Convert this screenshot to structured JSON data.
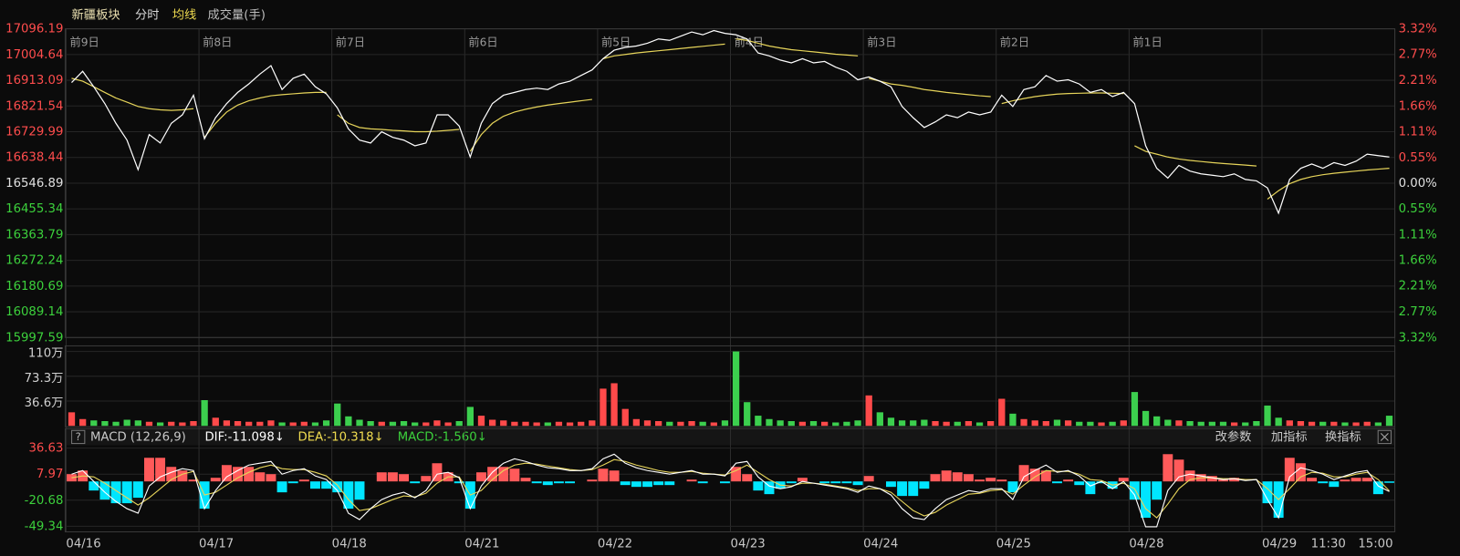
{
  "header": {
    "name": "新疆板块",
    "tabs": [
      "分时",
      "均线",
      "成交量(手)"
    ]
  },
  "chart_data": [
    {
      "type": "line",
      "ylim": [
        15997.59,
        17096.19
      ],
      "yticks": [
        17096.19,
        17004.64,
        16913.09,
        16821.54,
        16729.99,
        16638.44,
        16546.89,
        16455.34,
        16363.79,
        16272.24,
        16180.69,
        16089.14,
        15997.59
      ],
      "y2lim": [
        -3.32,
        3.32
      ],
      "y2ticks": [
        {
          "value": 3.32,
          "label": "3.32%"
        },
        {
          "value": 2.77,
          "label": "2.77%"
        },
        {
          "value": 2.21,
          "label": "2.21%"
        },
        {
          "value": 1.66,
          "label": "1.66%"
        },
        {
          "value": 1.11,
          "label": "1.11%"
        },
        {
          "value": 0.55,
          "label": "0.55%"
        },
        {
          "value": 0,
          "label": "0.00%"
        },
        {
          "value": -0.55,
          "label": "0.55%"
        },
        {
          "value": -1.11,
          "label": "1.11%"
        },
        {
          "value": -1.66,
          "label": "1.66%"
        },
        {
          "value": -2.21,
          "label": "2.21%"
        },
        {
          "value": -2.77,
          "label": "2.77%"
        },
        {
          "value": -3.32,
          "label": "3.32%"
        }
      ],
      "day_labels": [
        "前9日",
        "前8日",
        "前7日",
        "前6日",
        "前5日",
        "前4日",
        "前3日",
        "前2日",
        "前1日"
      ],
      "grid": true,
      "series": [
        {
          "color": "#ffffff",
          "values": [
            16905,
            16945,
            16890,
            16830,
            16760,
            16700,
            16595,
            16720,
            16690,
            16760,
            16790,
            16860,
            16705,
            16780,
            16830,
            16870,
            16900,
            16935,
            16965,
            16880,
            16920,
            16935,
            16890,
            16865,
            16815,
            16740,
            16700,
            16690,
            16730,
            16710,
            16700,
            16680,
            16690,
            16790,
            16790,
            16750,
            16640,
            16760,
            16830,
            16860,
            16870,
            16880,
            16885,
            16880,
            16900,
            16910,
            16930,
            16950,
            16990,
            17020,
            17030,
            17035,
            17045,
            17060,
            17055,
            17070,
            17085,
            17075,
            17090,
            17080,
            17075,
            17060,
            17010,
            17000,
            16985,
            16975,
            16990,
            16975,
            16980,
            16960,
            16945,
            16915,
            16925,
            16910,
            16890,
            16820,
            16780,
            16745,
            16765,
            16790,
            16780,
            16800,
            16790,
            16800,
            16860,
            16820,
            16880,
            16890,
            16930,
            16910,
            16915,
            16900,
            16870,
            16880,
            16855,
            16870,
            16830,
            16680,
            16600,
            16565,
            16610,
            16590,
            16580,
            16575,
            16570,
            16580,
            16560,
            16555,
            16530,
            16440,
            16560,
            16600,
            16615,
            16600,
            16620,
            16610,
            16625,
            16650,
            16645,
            16640
          ]
        },
        {
          "color": "#e6d45a",
          "values": [
            16920,
            16910,
            16890,
            16870,
            16850,
            16835,
            16820,
            16812,
            16808,
            16806,
            16808,
            16812,
            16710,
            16760,
            16800,
            16825,
            16840,
            16850,
            16858,
            16862,
            16865,
            16868,
            16870,
            16870,
            16790,
            16760,
            16745,
            16740,
            16738,
            16735,
            16733,
            16730,
            16730,
            16732,
            16735,
            16738,
            16660,
            16720,
            16760,
            16785,
            16800,
            16810,
            16818,
            16825,
            16830,
            16835,
            16840,
            16845,
            16990,
            17000,
            17005,
            17010,
            17014,
            17018,
            17022,
            17026,
            17030,
            17034,
            17038,
            17042,
            17060,
            17055,
            17045,
            17035,
            17028,
            17022,
            17018,
            17014,
            17010,
            17006,
            17003,
            17000,
            16920,
            16910,
            16900,
            16895,
            16888,
            16880,
            16875,
            16870,
            16866,
            16862,
            16858,
            16855,
            16830,
            16840,
            16848,
            16855,
            16860,
            16864,
            16866,
            16867,
            16868,
            16868,
            16867,
            16866,
            16680,
            16660,
            16650,
            16640,
            16633,
            16628,
            16624,
            16620,
            16617,
            16614,
            16611,
            16608,
            16490,
            16520,
            16545,
            16560,
            16570,
            16577,
            16582,
            16586,
            16590,
            16594,
            16597,
            16600
          ]
        }
      ]
    },
    {
      "type": "bar",
      "ylim": [
        0,
        110
      ],
      "yticks": [
        {
          "value": 110,
          "label": "110万"
        },
        {
          "value": 73.3,
          "label": "73.3万"
        },
        {
          "value": 36.6,
          "label": "36.6万"
        }
      ],
      "up_color": "#ff4a4a",
      "down_color": "#3ccf4e",
      "values": [
        20,
        10,
        8,
        7,
        6,
        9,
        8,
        6,
        5,
        6,
        5,
        7,
        38,
        12,
        8,
        7,
        6,
        6,
        8,
        5,
        5,
        6,
        5,
        8,
        33,
        14,
        9,
        7,
        6,
        6,
        7,
        5,
        5,
        8,
        5,
        7,
        28,
        15,
        9,
        8,
        6,
        6,
        5,
        5,
        6,
        5,
        6,
        8,
        55,
        63,
        25,
        10,
        8,
        7,
        6,
        6,
        7,
        6,
        5,
        8,
        110,
        35,
        15,
        10,
        8,
        7,
        6,
        7,
        6,
        5,
        6,
        8,
        45,
        20,
        12,
        8,
        8,
        9,
        7,
        6,
        6,
        7,
        5,
        7,
        40,
        18,
        10,
        8,
        7,
        9,
        8,
        6,
        6,
        5,
        6,
        8,
        50,
        22,
        14,
        9,
        8,
        7,
        6,
        6,
        6,
        5,
        5,
        7,
        30,
        12,
        8,
        7,
        6,
        6,
        6,
        5,
        5,
        6,
        5,
        15
      ]
    },
    {
      "type": "macd",
      "help": "?",
      "title": "MACD (12,26,9)",
      "legend": [
        "DIF:-11.098↓",
        "DEA:-10.318↓",
        "MACD:-1.560↓"
      ],
      "buttons": [
        "改参数",
        "加指标",
        "换指标"
      ],
      "ylim": [
        -52,
        40
      ],
      "yticks": [
        36.63,
        7.97,
        -20.68,
        -49.34
      ],
      "x_labels": [
        "04/16",
        "04/17",
        "04/18",
        "04/21",
        "04/22",
        "04/23",
        "04/24",
        "04/25",
        "04/28",
        "04/29",
        "11:30",
        "15:00"
      ],
      "series": [
        {
          "color": "#ffffff",
          "values": [
            8,
            12,
            0,
            -12,
            -22,
            -30,
            -35,
            -5,
            5,
            10,
            14,
            12,
            -30,
            -10,
            5,
            12,
            18,
            20,
            22,
            8,
            12,
            14,
            6,
            2,
            -10,
            -35,
            -42,
            -30,
            -20,
            -15,
            -12,
            -18,
            -10,
            8,
            10,
            4,
            -30,
            -5,
            10,
            20,
            25,
            22,
            18,
            15,
            14,
            12,
            12,
            14,
            25,
            30,
            20,
            15,
            12,
            10,
            8,
            10,
            12,
            8,
            8,
            6,
            20,
            22,
            5,
            -5,
            -8,
            -6,
            0,
            -2,
            -4,
            -6,
            -8,
            -12,
            -5,
            -8,
            -15,
            -30,
            -40,
            -42,
            -30,
            -20,
            -15,
            -10,
            -12,
            -8,
            -8,
            -20,
            5,
            12,
            18,
            10,
            12,
            6,
            -5,
            0,
            -8,
            0,
            -15,
            -50,
            -50,
            -10,
            5,
            8,
            6,
            4,
            2,
            3,
            1,
            2,
            -20,
            -40,
            5,
            15,
            12,
            8,
            2,
            6,
            10,
            12,
            -5,
            -11.098
          ]
        },
        {
          "color": "#e6d45a",
          "values": [
            4,
            6,
            5,
            -2,
            -10,
            -18,
            -26,
            -18,
            -8,
            2,
            8,
            11,
            -15,
            -12,
            -4,
            4,
            10,
            15,
            18,
            14,
            13,
            13,
            10,
            6,
            -4,
            -20,
            -32,
            -30,
            -25,
            -20,
            -16,
            -17,
            -13,
            -2,
            5,
            5,
            -15,
            -10,
            2,
            12,
            18,
            20,
            19,
            17,
            15,
            13,
            12,
            13,
            18,
            24,
            22,
            18,
            15,
            12,
            10,
            10,
            11,
            9,
            8,
            7,
            12,
            18,
            10,
            2,
            -4,
            -5,
            -2,
            -2,
            -3,
            -5,
            -7,
            -10,
            -8,
            -8,
            -12,
            -22,
            -32,
            -38,
            -34,
            -26,
            -20,
            -14,
            -13,
            -10,
            -9,
            -14,
            -4,
            5,
            12,
            11,
            11,
            8,
            2,
            1,
            -4,
            -2,
            -8,
            -30,
            -40,
            -25,
            -8,
            2,
            4,
            4,
            3,
            3,
            2,
            2,
            -8,
            -20,
            -8,
            5,
            10,
            9,
            5,
            5,
            8,
            10,
            2,
            -10.318
          ]
        },
        {
          "up_color": "#ff5a5a",
          "down_color": "#00e5ff",
          "values": [
            8,
            12,
            -10,
            -20,
            -24,
            -24,
            -18,
            26,
            26,
            16,
            12,
            2,
            -30,
            4,
            18,
            16,
            16,
            10,
            8,
            -12,
            -2,
            2,
            -8,
            -8,
            -12,
            -30,
            -20,
            0,
            10,
            10,
            8,
            -2,
            6,
            20,
            10,
            -2,
            -30,
            10,
            16,
            16,
            14,
            4,
            -2,
            -4,
            -2,
            -2,
            0,
            2,
            14,
            12,
            -4,
            -6,
            -6,
            -4,
            -4,
            0,
            2,
            -2,
            0,
            -2,
            16,
            8,
            -10,
            -14,
            -8,
            -2,
            4,
            0,
            -2,
            -2,
            -2,
            -4,
            6,
            0,
            -6,
            -16,
            -16,
            -8,
            8,
            12,
            10,
            8,
            2,
            4,
            2,
            -12,
            18,
            14,
            12,
            -2,
            2,
            -4,
            -14,
            -2,
            -8,
            4,
            -20,
            -40,
            -20,
            30,
            24,
            12,
            8,
            6,
            2,
            4,
            0,
            0,
            -24,
            -40,
            26,
            20,
            4,
            -2,
            -6,
            2,
            4,
            4,
            -14,
            -1.56
          ]
        }
      ]
    }
  ]
}
